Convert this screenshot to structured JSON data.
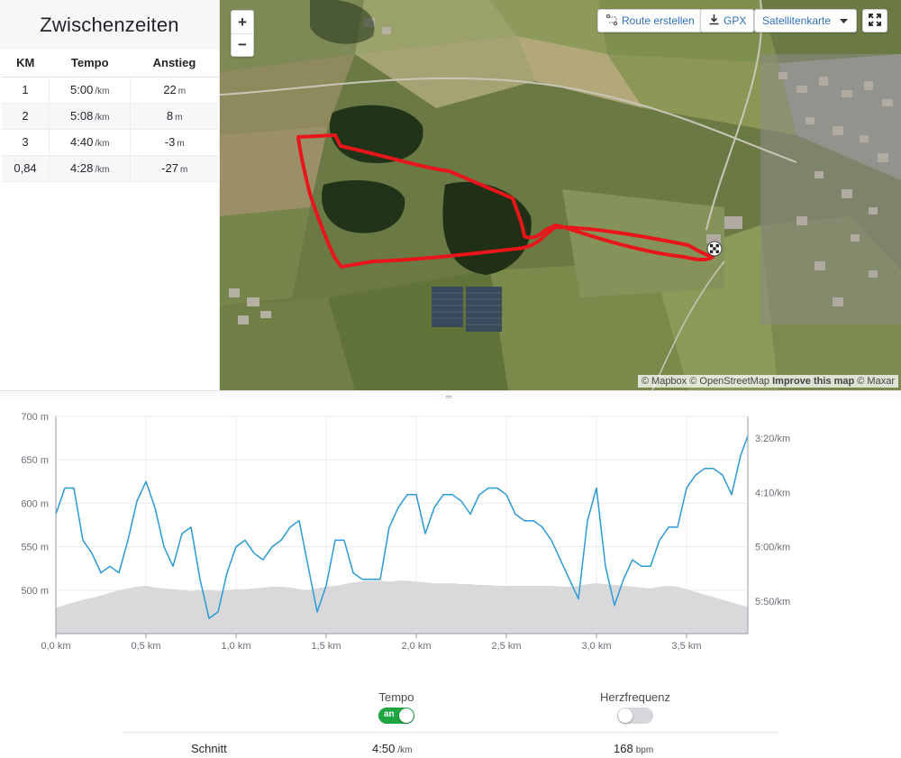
{
  "splits": {
    "title": "Zwischenzeiten",
    "headers": [
      "KM",
      "Tempo",
      "Anstieg"
    ],
    "rows": [
      {
        "km": "1",
        "pace": "5:00",
        "pace_unit": "/km",
        "elev": "22",
        "elev_unit": "m"
      },
      {
        "km": "2",
        "pace": "5:08",
        "pace_unit": "/km",
        "elev": "8",
        "elev_unit": "m"
      },
      {
        "km": "3",
        "pace": "4:40",
        "pace_unit": "/km",
        "elev": "-3",
        "elev_unit": "m"
      },
      {
        "km": "0,84",
        "pace": "4:28",
        "pace_unit": "/km",
        "elev": "-27",
        "elev_unit": "m"
      }
    ]
  },
  "map": {
    "zoom_in": "+",
    "zoom_out": "−",
    "route_button": "Route erstellen",
    "gpx_button": "GPX",
    "map_type": "Satellitenkarte",
    "attribution": {
      "mapbox": "© Mapbox",
      "osm": "© OpenStreetMap",
      "improve": "Improve this map",
      "maxar": "© Maxar"
    },
    "route_color": "#e8161b"
  },
  "divider_glyph": "═",
  "chart_data": {
    "type": "line",
    "x": [
      0,
      0.05,
      0.1,
      0.15,
      0.2,
      0.25,
      0.3,
      0.35,
      0.4,
      0.45,
      0.5,
      0.55,
      0.6,
      0.65,
      0.7,
      0.75,
      0.8,
      0.85,
      0.9,
      0.95,
      1.0,
      1.05,
      1.1,
      1.15,
      1.2,
      1.25,
      1.3,
      1.35,
      1.4,
      1.45,
      1.5,
      1.55,
      1.6,
      1.65,
      1.7,
      1.75,
      1.8,
      1.85,
      1.9,
      1.95,
      2.0,
      2.05,
      2.1,
      2.15,
      2.2,
      2.25,
      2.3,
      2.35,
      2.4,
      2.45,
      2.5,
      2.55,
      2.6,
      2.65,
      2.7,
      2.75,
      2.8,
      2.85,
      2.9,
      2.95,
      3.0,
      3.05,
      3.1,
      3.15,
      3.2,
      3.25,
      3.3,
      3.35,
      3.4,
      3.45,
      3.5,
      3.55,
      3.6,
      3.65,
      3.7,
      3.75,
      3.8,
      3.84
    ],
    "series": [
      {
        "axis": "left",
        "values": [
          480,
          483,
          486,
          489,
          491,
          494,
          497,
          500,
          502,
          504,
          505,
          503,
          502,
          501,
          500,
          499,
          500,
          500,
          499,
          500,
          501,
          501,
          502,
          503,
          504,
          504,
          503,
          501,
          500,
          502,
          504,
          505,
          507,
          509,
          510,
          511,
          511,
          510,
          511,
          511,
          510,
          509,
          508,
          508,
          508,
          507,
          507,
          506,
          506,
          505,
          505,
          505,
          505,
          505,
          505,
          505,
          504,
          504,
          505,
          507,
          508,
          507,
          506,
          505,
          504,
          503,
          502,
          504,
          505,
          504,
          501,
          498,
          495,
          492,
          489,
          486,
          483,
          481
        ]
      },
      {
        "axis": "right",
        "values": [
          4.5,
          4.1,
          4.1,
          4.9,
          5.1,
          5.4,
          5.3,
          5.4,
          4.9,
          4.3,
          4.0,
          4.4,
          5.0,
          5.3,
          4.8,
          4.7,
          5.5,
          6.1,
          6.0,
          5.4,
          5.0,
          4.9,
          5.1,
          5.2,
          5.0,
          4.9,
          4.7,
          4.6,
          5.3,
          6.0,
          5.6,
          4.9,
          4.9,
          5.4,
          5.5,
          5.5,
          5.5,
          4.7,
          4.4,
          4.2,
          4.2,
          4.8,
          4.4,
          4.2,
          4.2,
          4.3,
          4.5,
          4.2,
          4.1,
          4.1,
          4.2,
          4.5,
          4.6,
          4.6,
          4.7,
          4.9,
          5.2,
          5.5,
          5.8,
          4.6,
          4.1,
          5.3,
          5.9,
          5.5,
          5.2,
          5.3,
          5.3,
          4.9,
          4.7,
          4.7,
          4.1,
          3.9,
          3.8,
          3.8,
          3.9,
          4.2,
          3.6,
          3.3
        ]
      }
    ],
    "ylim_left": [
      450,
      700
    ],
    "ylim_right": [
      6.3333,
      3.0
    ],
    "xlim": [
      0,
      3.84
    ],
    "xticks": [
      "0,0 km",
      "0,5 km",
      "1,0 km",
      "1,5 km",
      "2,0 km",
      "2,5 km",
      "3,0 km",
      "3,5 km"
    ],
    "yticks_left": [
      "500 m",
      "550 m",
      "600 m",
      "650 m",
      "700 m"
    ],
    "yticks_right": [
      "5:50/km",
      "5:00/km",
      "4:10/km",
      "3:20/km"
    ],
    "grid": true,
    "colors": {
      "pace": "#2b9ad6",
      "elevation": "#d9d9dc"
    }
  },
  "stats": {
    "pace_label": "Tempo",
    "pace_toggle": "an",
    "hr_label": "Herzfrequenz",
    "avg_label": "Schnitt",
    "avg_pace": "4:50",
    "avg_pace_unit": "/km",
    "avg_hr": "168",
    "avg_hr_unit": "bpm"
  }
}
